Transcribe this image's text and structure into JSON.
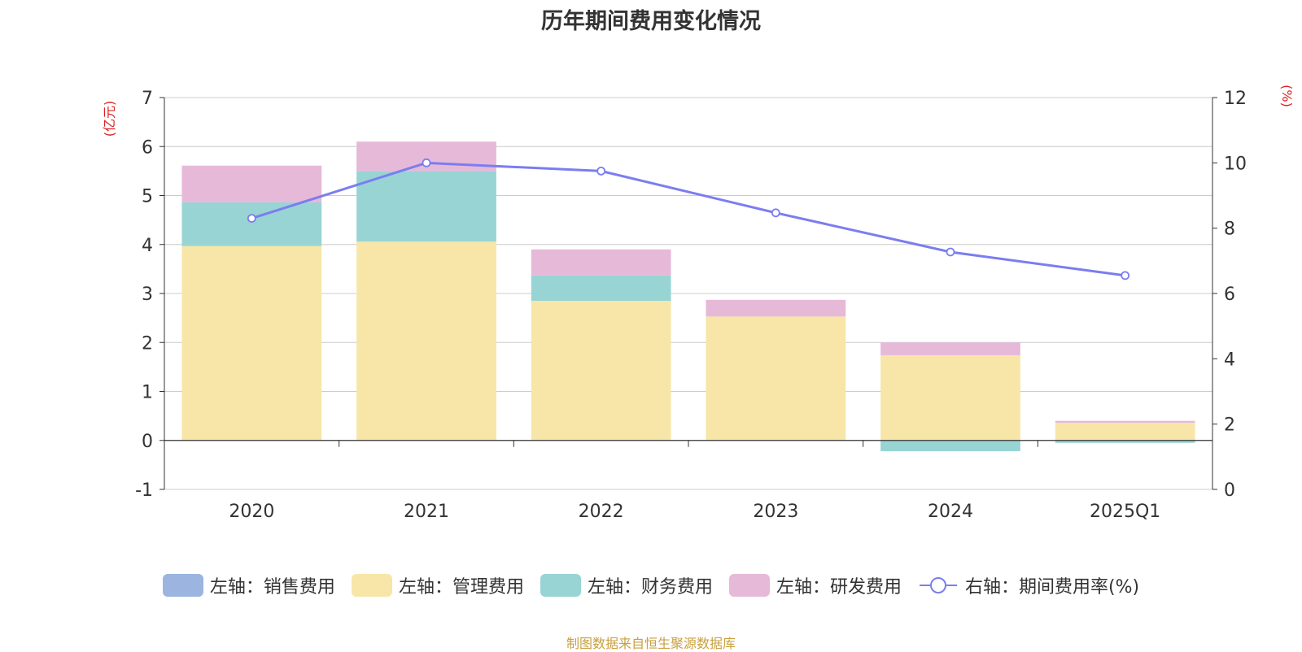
{
  "chart_data": {
    "type": "bar",
    "title": "历年期间费用变化情况",
    "ylabel_left": "(亿元)",
    "ylabel_right": "(%)",
    "categories": [
      "2020",
      "2021",
      "2022",
      "2023",
      "2024",
      "2025Q1"
    ],
    "ylim_left": [
      -1,
      7
    ],
    "yticks_left": [
      "7",
      "6",
      "5",
      "4",
      "3",
      "2",
      "1",
      "0",
      "-1"
    ],
    "ylim_right": [
      0,
      12
    ],
    "yticks_right": [
      "12",
      "10",
      "8",
      "6",
      "4",
      "2",
      "0"
    ],
    "grid": true,
    "legend_position": "bottom",
    "series": [
      {
        "name": "左轴：销售费用",
        "axis": "left",
        "kind": "bar",
        "color": "#9bb5e0",
        "values": [
          0,
          0,
          0,
          0,
          0,
          0
        ]
      },
      {
        "name": "左轴：管理费用",
        "axis": "left",
        "kind": "bar",
        "color": "#f7e6a7",
        "values": [
          3.97,
          4.06,
          2.85,
          2.53,
          1.74,
          0.36
        ]
      },
      {
        "name": "左轴：财务费用",
        "axis": "left",
        "kind": "bar",
        "color": "#98d4d4",
        "values": [
          0.89,
          1.44,
          0.52,
          0,
          -0.22,
          -0.05
        ]
      },
      {
        "name": "左轴：研发费用",
        "axis": "left",
        "kind": "bar",
        "color": "#e6b9d8",
        "values": [
          0.75,
          0.6,
          0.53,
          0.34,
          0.26,
          0.04
        ]
      },
      {
        "name": "右轴：期间费用率(%)",
        "axis": "right",
        "kind": "line",
        "color": "#7b7df0",
        "values": [
          8.3,
          10.0,
          9.75,
          8.47,
          7.27,
          6.55
        ]
      }
    ]
  },
  "source_note": "制图数据来自恒生聚源数据库"
}
